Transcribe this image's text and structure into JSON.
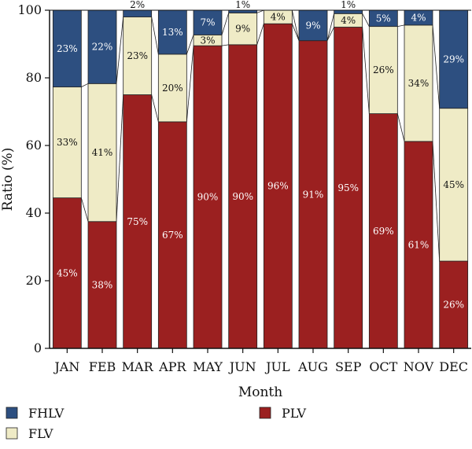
{
  "chart_data": {
    "type": "bar",
    "stacked": true,
    "categories": [
      "JAN",
      "FEB",
      "MAR",
      "APR",
      "MAY",
      "JUN",
      "JUL",
      "AUG",
      "SEP",
      "OCT",
      "NOV",
      "DEC"
    ],
    "series": [
      {
        "name": "PLV",
        "color": "#9b2020",
        "values": [
          44.5,
          37.5,
          75,
          67,
          89.5,
          89.8,
          96,
          91,
          95,
          69.4,
          61.2,
          25.8
        ],
        "labels": [
          "45%",
          "38%",
          "75%",
          "67%",
          "90%",
          "90%",
          "96%",
          "91%",
          "95%",
          "69%",
          "61%",
          "26%"
        ]
      },
      {
        "name": "FLV",
        "color": "#efebc6",
        "values": [
          32.8,
          40.8,
          23,
          20,
          3.2,
          9.4,
          4,
          0,
          4,
          25.8,
          34.4,
          45.2
        ],
        "labels": [
          "33%",
          "41%",
          "23%",
          "20%",
          "3%",
          "9%",
          "4%",
          "",
          "4%",
          "26%",
          "34%",
          "45%"
        ]
      },
      {
        "name": "FHLV",
        "color": "#2d4f80",
        "values": [
          22.7,
          21.7,
          2,
          13,
          7.3,
          0.8,
          0,
          9,
          1,
          4.8,
          4.4,
          29
        ],
        "labels": [
          "23%",
          "22%",
          "2%",
          "13%",
          "7%",
          "1%",
          "",
          "9%",
          "1%",
          "5%",
          "4%",
          "29%"
        ]
      }
    ],
    "xlabel": "Month",
    "ylabel": "Ratio (%)",
    "ylim": [
      0,
      100
    ],
    "yticks": [
      0,
      20,
      40,
      60,
      80,
      100
    ],
    "grid": false,
    "legend": {
      "placement": "bottom",
      "entries": [
        "FHLV",
        "FLV",
        "PLV"
      ]
    }
  }
}
